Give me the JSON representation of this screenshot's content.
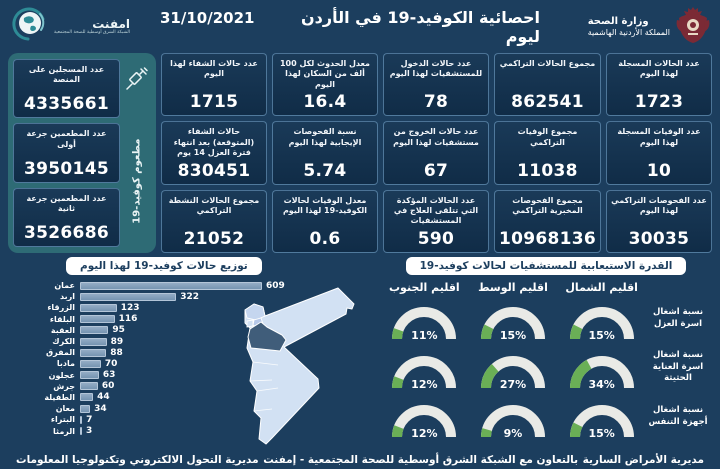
{
  "header": {
    "title": "احصائية الكوفيد-19 في الأردن ليوم",
    "date": "31/10/2021",
    "ministry": {
      "line1": "وزارة الصحة",
      "line2": "المملكة الأردنية الهاشمية"
    },
    "emphnet": {
      "name": "امفنت",
      "subtitle": "الشبكة الشرق أوسطية للصحة المجتمعية"
    }
  },
  "vaccine_panel": {
    "side_label": "مطعوم كوفيد-19",
    "cards": [
      {
        "label": "عدد المسجلين على المنصة",
        "value": "4335661"
      },
      {
        "label": "عدد المطعمين جرعة أولى",
        "value": "3950145"
      },
      {
        "label": "عدد المطعمين جرعة ثانية",
        "value": "3526686"
      }
    ]
  },
  "stats": {
    "cards": [
      {
        "label": "عدد الحالات المسجلة لهذا اليوم",
        "value": "1723"
      },
      {
        "label": "مجموع الحالات التراكمي",
        "value": "862541"
      },
      {
        "label": "عدد حالات الدخول للمستشفيات لهذا اليوم",
        "value": "78"
      },
      {
        "label": "معدل الحدوث لكل 100 ألف من السكان لهذا اليوم",
        "value": "16.4"
      },
      {
        "label": "عدد حالات الشفاء لهذا اليوم",
        "value": "1715"
      },
      {
        "label": "عدد الوفيات المسجلة لهذا اليوم",
        "value": "10"
      },
      {
        "label": "مجموع الوفيات التراكمي",
        "value": "11038"
      },
      {
        "label": "عدد حالات الخروج من مستشفيات لهذا اليوم",
        "value": "67"
      },
      {
        "label": "نسبة الفحوصات الإيجابية لهذا اليوم",
        "value": "5.74"
      },
      {
        "label": "حالات الشفاء (المتوقعة) بعد انتهاء فترة العزل 14 يوم",
        "value": "830451"
      },
      {
        "label": "عدد الفحوصات التراكمي لهذا اليوم",
        "value": "30035"
      },
      {
        "label": "مجموع الفحوصات المخبرية التراكمي",
        "value": "10968136"
      },
      {
        "label": "عدد الحالات المؤكدة التي تتلقى العلاج في المستشفيات",
        "value": "590"
      },
      {
        "label": "معدل الوفيات لحالات الكوفيد-19 لهذا اليوم",
        "value": "0.6"
      },
      {
        "label": "مجموع الحالات النشطة التراكمي",
        "value": "21052"
      }
    ]
  },
  "chart_data": [
    {
      "type": "bar",
      "orientation": "horizontal",
      "title": "توزيع حالات كوفيد-19 لهذا اليوم",
      "categories": [
        "عمان",
        "اربد",
        "الزرقاء",
        "البلقاء",
        "العقبة",
        "الكرك",
        "المفرق",
        "مادبا",
        "عجلون",
        "جرش",
        "الطفيلة",
        "معان",
        "البتراء",
        "الرمثا"
      ],
      "values": [
        609,
        322,
        123,
        116,
        95,
        89,
        88,
        70,
        63,
        60,
        44,
        34,
        7,
        3
      ],
      "xlim": [
        0,
        640
      ],
      "grid": false,
      "data_labels": true
    },
    {
      "type": "table",
      "render_style": "semicircle-gauges",
      "title": "القدرة الاستيعابية للمستشفيات لحالات كوفيد-19",
      "categories": [
        "اقليم الشمال",
        "اقليم الوسط",
        "اقليم الجنوب"
      ],
      "series": [
        {
          "name": "نسبة اشغال اسرة العزل",
          "values": [
            15,
            15,
            11
          ]
        },
        {
          "name": "نسبة اشغال اسرة العناية الحثيثة",
          "values": [
            34,
            27,
            12
          ]
        },
        {
          "name": "نسبة اشغال أجهزة التنفس",
          "values": [
            15,
            9,
            12
          ]
        }
      ],
      "unit": "%"
    }
  ],
  "footer": {
    "right": "مديرية الأمراض السارية",
    "center": "بالتعاون مع الشبكة الشرق أوسطية للصحة المجتمعية - إمفنت",
    "left": "مديرية التحول الالكتروني وتكنولوجيا المعلومات"
  },
  "colors": {
    "background": "#1c3e5e",
    "card_border": "#7dafd7",
    "sidebar_teal": "#2e6b75",
    "bar_fill": "#8aa3bd",
    "gauge_track": "#e9eae6",
    "gauge_fill": "#6aaf56",
    "map_light": "#d2e1f3",
    "map_dark": "#405d7a",
    "map_accent": "#b7c9e9",
    "crest_maroon": "#7b2a35"
  }
}
